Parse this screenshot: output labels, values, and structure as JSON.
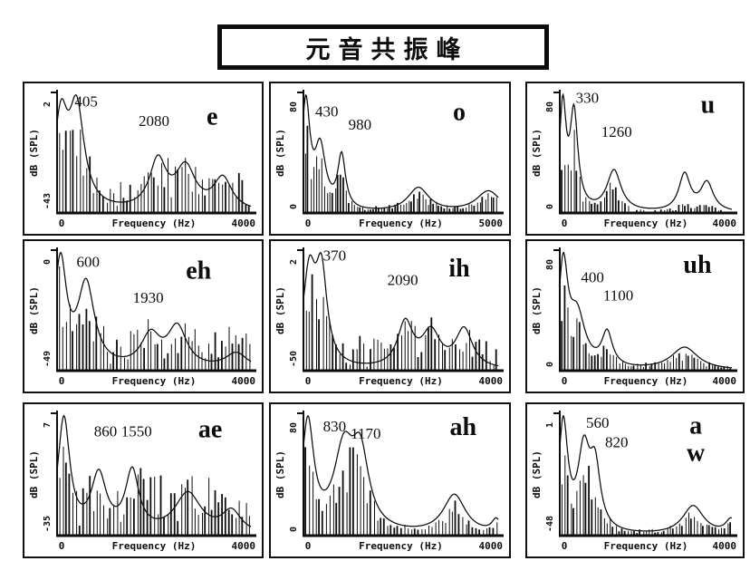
{
  "title": "元音共振峰",
  "shared_axes": {
    "xlabel": "Frequency (Hz)",
    "ylabel": "dB (SPL)",
    "x_min_label": "0"
  },
  "chart_data": [
    {
      "type": "line",
      "panel_title": "e",
      "vowel_lines": [
        "e"
      ],
      "vowel_pos": {
        "fx": 0.8,
        "fy": 0.2
      },
      "formants_hz": [
        405,
        2080
      ],
      "xlabel": "Frequency (Hz)",
      "ylabel": "dB (SPL)",
      "x_range_hz": [
        0,
        4000
      ],
      "x_tick_labels": [
        "0",
        "4000"
      ],
      "y_top_label": "2",
      "y_bottom_label": "-43",
      "annotations": [
        {
          "text": "405",
          "fx": 0.15,
          "fy": 0.08
        },
        {
          "text": "2080",
          "fx": 0.5,
          "fy": 0.24
        }
      ],
      "envelope_peaks": [
        {
          "f": 80,
          "a": 0.9,
          "bw": 170
        },
        {
          "f": 405,
          "a": 1.0,
          "bw": 190
        },
        {
          "f": 2080,
          "a": 0.5,
          "bw": 210
        },
        {
          "f": 2650,
          "a": 0.43,
          "bw": 250
        },
        {
          "f": 3420,
          "a": 0.33,
          "bw": 230
        }
      ],
      "noise_floor": 0.3,
      "harmonic_gain": 0.72,
      "harmonic_spacing_hz": 70,
      "seed": 3
    },
    {
      "type": "line",
      "panel_title": "o",
      "vowel_lines": [
        "o"
      ],
      "vowel_pos": {
        "fx": 0.8,
        "fy": 0.16
      },
      "formants_hz": [
        430,
        980
      ],
      "xlabel": "Frequency (Hz)",
      "ylabel": "dB (SPL)",
      "x_range_hz": [
        0,
        5000
      ],
      "x_tick_labels": [
        "0",
        "5000"
      ],
      "y_top_label": "80",
      "y_bottom_label": "0",
      "annotations": [
        {
          "text": "430",
          "fx": 0.12,
          "fy": 0.16
        },
        {
          "text": "980",
          "fx": 0.29,
          "fy": 0.27
        }
      ],
      "envelope_peaks": [
        {
          "f": 60,
          "a": 1.1,
          "bw": 130
        },
        {
          "f": 430,
          "a": 0.62,
          "bw": 170
        },
        {
          "f": 980,
          "a": 0.55,
          "bw": 120
        },
        {
          "f": 2950,
          "a": 0.25,
          "bw": 330
        },
        {
          "f": 4750,
          "a": 0.22,
          "bw": 380
        }
      ],
      "noise_floor": 0.03,
      "harmonic_gain": 0.85,
      "harmonic_spacing_hz": 70,
      "seed": 5
    },
    {
      "type": "line",
      "panel_title": "u",
      "vowel_lines": [
        "u"
      ],
      "vowel_pos": {
        "fx": 0.86,
        "fy": 0.1
      },
      "formants_hz": [
        330,
        1260
      ],
      "xlabel": "Frequency (Hz)",
      "ylabel": "dB (SPL)",
      "x_range_hz": [
        0,
        4000
      ],
      "x_tick_labels": [
        "0",
        "4000"
      ],
      "y_top_label": "80",
      "y_bottom_label": "0",
      "annotations": [
        {
          "text": "330",
          "fx": 0.16,
          "fy": 0.05
        },
        {
          "text": "1260",
          "fx": 0.33,
          "fy": 0.33
        }
      ],
      "envelope_peaks": [
        {
          "f": 70,
          "a": 1.0,
          "bw": 95
        },
        {
          "f": 330,
          "a": 0.92,
          "bw": 110
        },
        {
          "f": 1260,
          "a": 0.4,
          "bw": 200
        },
        {
          "f": 2900,
          "a": 0.36,
          "bw": 160
        },
        {
          "f": 3420,
          "a": 0.28,
          "bw": 180
        }
      ],
      "noise_floor": 0.02,
      "harmonic_gain": 0.8,
      "harmonic_spacing_hz": 70,
      "seed": 8,
      "hf_damp": [
        1600,
        0.35
      ]
    },
    {
      "type": "line",
      "panel_title": "eh",
      "vowel_lines": [
        "eh"
      ],
      "vowel_pos": {
        "fx": 0.73,
        "fy": 0.17
      },
      "formants_hz": [
        600,
        1930
      ],
      "xlabel": "Frequency (Hz)",
      "ylabel": "dB (SPL)",
      "x_range_hz": [
        0,
        4000
      ],
      "x_tick_labels": [
        "0",
        "4000"
      ],
      "y_top_label": "0",
      "y_bottom_label": "-49",
      "annotations": [
        {
          "text": "600",
          "fx": 0.16,
          "fy": 0.1
        },
        {
          "text": "1930",
          "fx": 0.47,
          "fy": 0.4
        }
      ],
      "envelope_peaks": [
        {
          "f": 70,
          "a": 1.0,
          "bw": 150
        },
        {
          "f": 600,
          "a": 0.78,
          "bw": 210
        },
        {
          "f": 1930,
          "a": 0.3,
          "bw": 240
        },
        {
          "f": 2480,
          "a": 0.38,
          "bw": 240
        },
        {
          "f": 3700,
          "a": 0.15,
          "bw": 280
        }
      ],
      "noise_floor": 0.3,
      "harmonic_gain": 0.7,
      "harmonic_spacing_hz": 70,
      "seed": 11
    },
    {
      "type": "line",
      "panel_title": "ih",
      "vowel_lines": [
        "ih"
      ],
      "vowel_pos": {
        "fx": 0.8,
        "fy": 0.15
      },
      "formants_hz": [
        370,
        2090
      ],
      "xlabel": "Frequency (Hz)",
      "ylabel": "dB (SPL)",
      "x_range_hz": [
        0,
        4000
      ],
      "x_tick_labels": [
        "0",
        "4000"
      ],
      "y_top_label": "2",
      "y_bottom_label": "-50",
      "annotations": [
        {
          "text": "370",
          "fx": 0.16,
          "fy": 0.05
        },
        {
          "text": "2090",
          "fx": 0.51,
          "fy": 0.25
        }
      ],
      "envelope_peaks": [
        {
          "f": 120,
          "a": 1.0,
          "bw": 160
        },
        {
          "f": 370,
          "a": 0.96,
          "bw": 140
        },
        {
          "f": 2090,
          "a": 0.48,
          "bw": 190
        },
        {
          "f": 2620,
          "a": 0.38,
          "bw": 230
        },
        {
          "f": 3300,
          "a": 0.42,
          "bw": 210
        }
      ],
      "noise_floor": 0.27,
      "harmonic_gain": 0.7,
      "harmonic_spacing_hz": 70,
      "seed": 13
    },
    {
      "type": "line",
      "panel_title": "uh",
      "vowel_lines": [
        "uh"
      ],
      "vowel_pos": {
        "fx": 0.8,
        "fy": 0.12
      },
      "formants_hz": [
        400,
        1100
      ],
      "xlabel": "Frequency (Hz)",
      "ylabel": "dB (SPL)",
      "x_range_hz": [
        0,
        4000
      ],
      "x_tick_labels": [
        "0",
        "4000"
      ],
      "y_top_label": "80",
      "y_bottom_label": "0",
      "annotations": [
        {
          "text": "400",
          "fx": 0.19,
          "fy": 0.23
        },
        {
          "text": "1100",
          "fx": 0.34,
          "fy": 0.38
        }
      ],
      "envelope_peaks": [
        {
          "f": 80,
          "a": 1.05,
          "bw": 130
        },
        {
          "f": 400,
          "a": 0.55,
          "bw": 230
        },
        {
          "f": 1100,
          "a": 0.36,
          "bw": 150
        },
        {
          "f": 2900,
          "a": 0.24,
          "bw": 380
        }
      ],
      "noise_floor": 0.03,
      "harmonic_gain": 0.8,
      "harmonic_spacing_hz": 70,
      "seed": 17
    },
    {
      "type": "line",
      "panel_title": "ae",
      "vowel_lines": [
        "ae"
      ],
      "vowel_pos": {
        "fx": 0.79,
        "fy": 0.13
      },
      "formants_hz": [
        860,
        1550
      ],
      "xlabel": "Frequency (Hz)",
      "ylabel": "dB (SPL)",
      "x_range_hz": [
        0,
        4000
      ],
      "x_tick_labels": [
        "0",
        "4000"
      ],
      "y_top_label": "7",
      "y_bottom_label": "-35",
      "annotations": [
        {
          "text": "860",
          "fx": 0.25,
          "fy": 0.15
        },
        {
          "text": "1550",
          "fx": 0.41,
          "fy": 0.15
        }
      ],
      "envelope_peaks": [
        {
          "f": 140,
          "a": 1.05,
          "bw": 150
        },
        {
          "f": 860,
          "a": 0.52,
          "bw": 190
        },
        {
          "f": 1550,
          "a": 0.55,
          "bw": 170
        },
        {
          "f": 2700,
          "a": 0.37,
          "bw": 330
        },
        {
          "f": 3600,
          "a": 0.2,
          "bw": 240
        }
      ],
      "noise_floor": 0.42,
      "harmonic_gain": 0.55,
      "harmonic_spacing_hz": 70,
      "seed": 19
    },
    {
      "type": "line",
      "panel_title": "ah",
      "vowel_lines": [
        "ah"
      ],
      "vowel_pos": {
        "fx": 0.82,
        "fy": 0.11
      },
      "formants_hz": [
        830,
        1170
      ],
      "xlabel": "Frequency (Hz)",
      "ylabel": "dB (SPL)",
      "x_range_hz": [
        0,
        4000
      ],
      "x_tick_labels": [
        "0",
        "4000"
      ],
      "y_top_label": "80",
      "y_bottom_label": "0",
      "annotations": [
        {
          "text": "830",
          "fx": 0.16,
          "fy": 0.11
        },
        {
          "text": "1170",
          "fx": 0.32,
          "fy": 0.17
        }
      ],
      "envelope_peaks": [
        {
          "f": 90,
          "a": 1.0,
          "bw": 150
        },
        {
          "f": 830,
          "a": 0.72,
          "bw": 250
        },
        {
          "f": 1170,
          "a": 0.65,
          "bw": 210
        },
        {
          "f": 3100,
          "a": 0.36,
          "bw": 280
        },
        {
          "f": 3960,
          "a": 0.12,
          "bw": 110
        }
      ],
      "noise_floor": 0.03,
      "harmonic_gain": 0.85,
      "harmonic_spacing_hz": 70,
      "seed": 23
    },
    {
      "type": "line",
      "panel_title": "a w",
      "vowel_lines": [
        "a",
        "w"
      ],
      "vowel_pos": {
        "fx": 0.79,
        "fy": 0.1
      },
      "formants_hz": [
        560,
        820
      ],
      "xlabel": "Frequency (Hz)",
      "ylabel": "dB (SPL)",
      "x_range_hz": [
        0,
        4000
      ],
      "x_tick_labels": [
        "0",
        "4000"
      ],
      "y_top_label": "1",
      "y_bottom_label": "-48",
      "annotations": [
        {
          "text": "560",
          "fx": 0.22,
          "fy": 0.08
        },
        {
          "text": "820",
          "fx": 0.33,
          "fy": 0.24
        }
      ],
      "envelope_peaks": [
        {
          "f": 80,
          "a": 1.05,
          "bw": 130
        },
        {
          "f": 560,
          "a": 0.75,
          "bw": 170
        },
        {
          "f": 820,
          "a": 0.58,
          "bw": 150
        },
        {
          "f": 3100,
          "a": 0.28,
          "bw": 300
        },
        {
          "f": 3980,
          "a": 0.14,
          "bw": 150
        }
      ],
      "noise_floor": 0.04,
      "harmonic_gain": 0.75,
      "harmonic_spacing_hz": 70,
      "seed": 29
    }
  ]
}
